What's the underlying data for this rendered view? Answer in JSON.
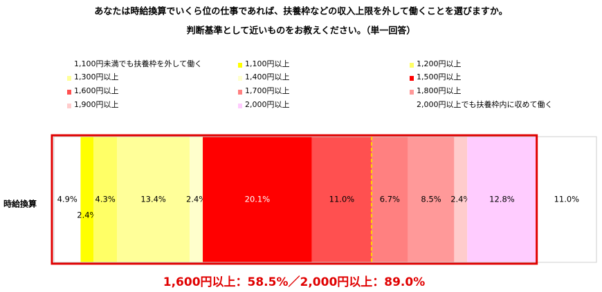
{
  "chart_data": {
    "type": "stacked-bar-100",
    "title": "あなたは時給換算でいくら位の仕事であれば、扶養枠などの収入上限を外して働くことを選びますか。",
    "subtitle": "判断基準として近いものをお教えください。（単一回答）",
    "categories": [
      "時給換算"
    ],
    "series": [
      {
        "name": "1,100円未満でも扶養枠を外して働く",
        "color": "#ffffff",
        "values": [
          4.9
        ],
        "value_labels": [
          "4.9%"
        ]
      },
      {
        "name": "1,100円以上",
        "color": "#ffff00",
        "values": [
          2.4
        ],
        "value_labels": [
          "2.4%"
        ]
      },
      {
        "name": "1,200円以上",
        "color": "#ffff66",
        "values": [
          4.3
        ],
        "value_labels": [
          "4.3%"
        ]
      },
      {
        "name": "1,300円以上",
        "color": "#ffff99",
        "values": [
          13.4
        ],
        "value_labels": [
          "13.4%"
        ]
      },
      {
        "name": "1,400円以上",
        "color": "#ffffcc",
        "values": [
          2.4
        ],
        "value_labels": [
          "2.4%"
        ]
      },
      {
        "name": "1,500円以上",
        "color": "#ff0000",
        "values": [
          20.1
        ],
        "value_labels": [
          "20.1%"
        ]
      },
      {
        "name": "1,600円以上",
        "color": "#ff5050",
        "values": [
          11.0
        ],
        "value_labels": [
          "11.0%"
        ]
      },
      {
        "name": "1,700円以上",
        "color": "#ff8080",
        "values": [
          6.7
        ],
        "value_labels": [
          "6.7%"
        ]
      },
      {
        "name": "1,800円以上",
        "color": "#ff9999",
        "values": [
          8.5
        ],
        "value_labels": [
          "8.5%"
        ]
      },
      {
        "name": "1,900円以上",
        "color": "#ffcccc",
        "values": [
          2.4
        ],
        "value_labels": [
          "2.4%"
        ]
      },
      {
        "name": "2,000円以上",
        "color": "#ffccff",
        "values": [
          12.8
        ],
        "value_labels": [
          "12.8%"
        ]
      },
      {
        "name": "2,000円以上でも扶養枠内に収めて働く",
        "color": "#ffffff",
        "values": [
          11.0
        ],
        "value_labels": [
          "11.0%"
        ]
      }
    ],
    "annotation": "1,600円以上：58.5%／2,000円以上：89.0%"
  }
}
